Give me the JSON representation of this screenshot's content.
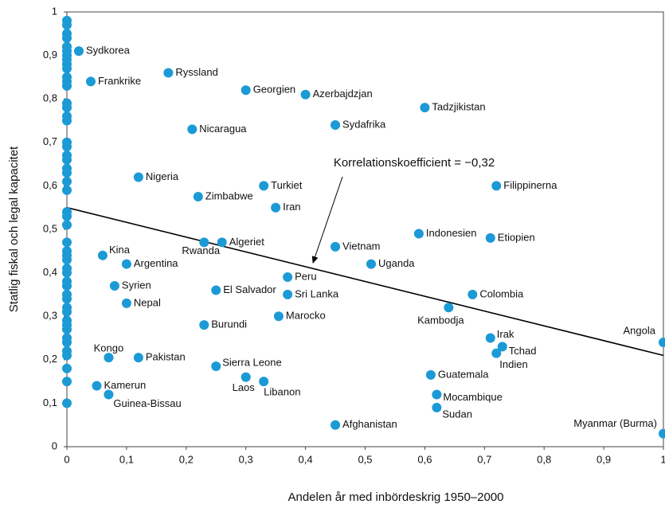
{
  "chart_data": {
    "type": "scatter",
    "x_label": "Andelen år med inbördeskrig 1950–2000",
    "y_label": "Statlig fiskal och legal kapacitet",
    "annotation": "Korrelationskoefficient = −0,32",
    "xlim": [
      0,
      1
    ],
    "ylim": [
      0,
      1
    ],
    "xticks": [
      0,
      {
        "value": 0.1,
        "label": "0,1"
      },
      {
        "value": 0.2,
        "label": "0,2"
      },
      {
        "value": 0.3,
        "label": "0,3"
      },
      {
        "value": 0.4,
        "label": "0,4"
      },
      {
        "value": 0.5,
        "label": "0,5"
      },
      {
        "value": 0.6,
        "label": "0,6"
      },
      {
        "value": 0.7,
        "label": "0,7"
      },
      {
        "value": 0.8,
        "label": "0,8"
      },
      {
        "value": 0.9,
        "label": "0,9"
      },
      1
    ],
    "yticks": [
      0,
      {
        "value": 0.1,
        "label": "0,1"
      },
      {
        "value": 0.2,
        "label": "0,2"
      },
      {
        "value": 0.3,
        "label": "0,3"
      },
      {
        "value": 0.4,
        "label": "0,4"
      },
      {
        "value": 0.5,
        "label": "0,5"
      },
      {
        "value": 0.6,
        "label": "0,6"
      },
      {
        "value": 0.7,
        "label": "0,7"
      },
      {
        "value": 0.8,
        "label": "0,8"
      },
      {
        "value": 0.9,
        "label": "0,9"
      },
      1
    ],
    "grid": false,
    "color": "#1b9ad6",
    "trendline": {
      "x": [
        0,
        1
      ],
      "values": [
        0.55,
        0.21
      ],
      "color": "#000000"
    },
    "point_labels": [
      "Sydkorea",
      "Frankrike",
      "Ryssland",
      "Georgien",
      "Azerbajdzjan",
      "Tadzjikistan",
      "Sydafrika",
      "Nicaragua",
      "Nigeria",
      "Turkiet",
      "Filippinerna",
      "Zimbabwe",
      "Iran",
      "Indonesien",
      "Etiopien",
      "Rwanda",
      "Algeriet",
      "Vietnam",
      "Kina",
      "Argentina",
      "Uganda",
      "Peru",
      "Syrien",
      "El Salvador",
      "Sri Lanka",
      "Colombia",
      "Nepal",
      "Kambodja",
      "Marocko",
      "Burundi",
      "Irak",
      "Tchad",
      "Indien",
      "Angola",
      "Kongo",
      "Pakistan",
      "Sierra Leone",
      "Laos",
      "Libanon",
      "Guatemala",
      "Kamerun",
      "Guinea-Bissau",
      "Mocambique",
      "Sudan",
      "Afghanistan",
      "Myanmar (Burma)",
      null,
      null,
      null,
      null,
      null,
      null,
      null,
      null,
      null,
      null,
      null,
      null,
      null,
      null,
      null,
      null,
      null,
      null,
      null,
      null,
      null,
      null,
      null,
      null,
      null,
      null,
      null,
      null,
      null,
      null,
      null,
      null,
      null,
      null,
      null,
      null,
      null,
      null,
      null,
      null,
      null,
      null,
      null,
      null,
      null,
      null,
      null,
      null,
      null,
      null
    ],
    "x": [
      0.02,
      0.04,
      0.17,
      0.3,
      0.4,
      0.6,
      0.45,
      0.21,
      0.12,
      0.33,
      0.72,
      0.22,
      0.35,
      0.59,
      0.71,
      0.23,
      0.26,
      0.45,
      0.06,
      0.1,
      0.51,
      0.37,
      0.08,
      0.25,
      0.37,
      0.68,
      0.1,
      0.64,
      0.355,
      0.23,
      0.71,
      0.73,
      0.72,
      1,
      0.07,
      0.12,
      0.25,
      0.3,
      0.33,
      0.61,
      0.05,
      0.07,
      0.62,
      0.62,
      0.45,
      1,
      0,
      0,
      0,
      0,
      0,
      0,
      0,
      0,
      0,
      0,
      0,
      0,
      0,
      0,
      0,
      0,
      0,
      0,
      0,
      0,
      0,
      0,
      0,
      0,
      0,
      0,
      0,
      0,
      0,
      0,
      0,
      0,
      0,
      0,
      0,
      0,
      0,
      0,
      0,
      0,
      0,
      0,
      0,
      0,
      0,
      0,
      0,
      0,
      0,
      0
    ],
    "values": [
      0.91,
      0.84,
      0.86,
      0.82,
      0.81,
      0.78,
      0.74,
      0.73,
      0.62,
      0.6,
      0.6,
      0.575,
      0.55,
      0.49,
      0.48,
      0.47,
      0.47,
      0.46,
      0.44,
      0.42,
      0.42,
      0.39,
      0.37,
      0.36,
      0.35,
      0.35,
      0.33,
      0.32,
      0.3,
      0.28,
      0.25,
      0.23,
      0.215,
      0.24,
      0.205,
      0.205,
      0.185,
      0.16,
      0.15,
      0.165,
      0.14,
      0.12,
      0.12,
      0.09,
      0.05,
      0.03,
      0.98,
      0.97,
      0.95,
      0.94,
      0.92,
      0.91,
      0.9,
      0.89,
      0.88,
      0.87,
      0.85,
      0.84,
      0.83,
      0.79,
      0.78,
      0.76,
      0.75,
      0.7,
      0.69,
      0.67,
      0.66,
      0.64,
      0.63,
      0.61,
      0.59,
      0.54,
      0.53,
      0.51,
      0.47,
      0.45,
      0.44,
      0.43,
      0.41,
      0.4,
      0.38,
      0.37,
      0.35,
      0.34,
      0.32,
      0.31,
      0.29,
      0.28,
      0.27,
      0.25,
      0.24,
      0.22,
      0.21,
      0.18,
      0.15,
      0.1
    ]
  }
}
